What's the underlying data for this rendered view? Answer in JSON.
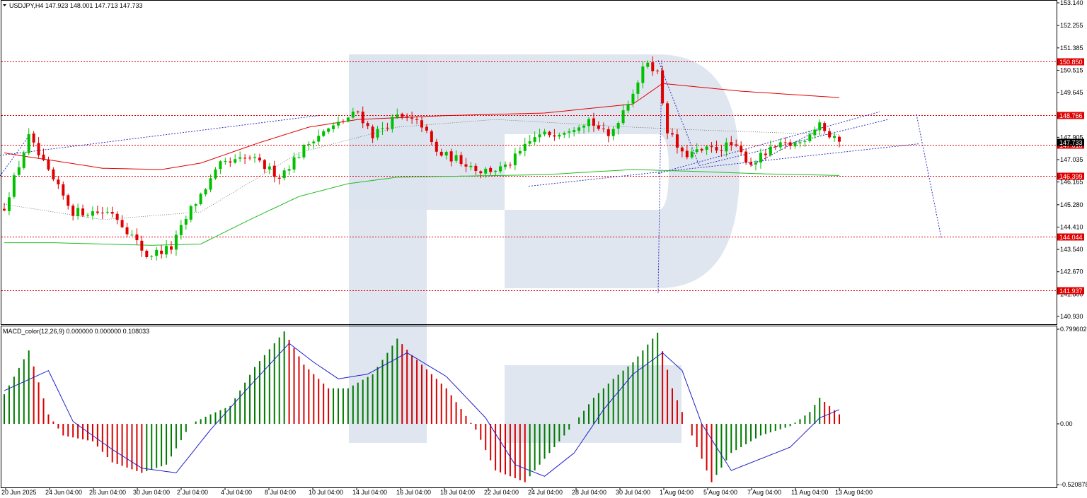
{
  "header": {
    "price_label": "USDJPY,H4  147.923 148.001 147.713 147.733",
    "macd_label": "MACD_color(12,26,9) 0.000000 0.000000 0.108033"
  },
  "chart_data": {
    "type": "candlestick",
    "symbol": "USDJPY",
    "timeframe": "H4",
    "ohlc_last": {
      "open": 147.923,
      "high": 148.001,
      "low": 147.713,
      "close": 147.733
    },
    "price_axis": {
      "ylim": [
        140.5,
        153.2
      ],
      "ticks": [
        "153.140",
        "152.255",
        "151.385",
        "150.515",
        "149.645",
        "148.775",
        "147.905",
        "147.035",
        "146.165",
        "145.280",
        "144.410",
        "143.540",
        "142.670",
        "141.800",
        "140.930"
      ]
    },
    "x_ticks": [
      "20 Jun 2025",
      "24 Jun 04:00",
      "26 Jun 04:00",
      "30 Jun 04:00",
      "2 Jul 04:00",
      "4 Jul 04:00",
      "8 Jul 04:00",
      "10 Jul 04:00",
      "14 Jul 04:00",
      "16 Jul 04:00",
      "18 Jul 04:00",
      "22 Jul 04:00",
      "24 Jul 04:00",
      "28 Jul 04:00",
      "30 Jul 04:00",
      "1 Aug 04:00",
      "5 Aug 04:00",
      "7 Aug 04:00",
      "11 Aug 04:00",
      "13 Aug 04:00"
    ],
    "levels": [
      {
        "value": 150.85,
        "label": "150.850"
      },
      {
        "value": 148.766,
        "label": "148.766"
      },
      {
        "value": 147.618,
        "label": "147.618"
      },
      {
        "value": 146.399,
        "label": "146.399"
      },
      {
        "value": 144.044,
        "label": "144.044"
      },
      {
        "value": 141.937,
        "label": "141.937"
      }
    ],
    "current_price": {
      "value": 147.733,
      "label": "147.733"
    },
    "close_anchors": [
      [
        0,
        145.2
      ],
      [
        5,
        147.9
      ],
      [
        9,
        146.5
      ],
      [
        14,
        145.0
      ],
      [
        22,
        145.0
      ],
      [
        25,
        144.3
      ],
      [
        29,
        143.3
      ],
      [
        34,
        143.6
      ],
      [
        38,
        145.1
      ],
      [
        44,
        146.8
      ],
      [
        50,
        147.1
      ],
      [
        56,
        146.4
      ],
      [
        63,
        147.9
      ],
      [
        67,
        148.3
      ],
      [
        72,
        148.9
      ],
      [
        75,
        148.0
      ],
      [
        80,
        148.7
      ],
      [
        85,
        148.4
      ],
      [
        88,
        147.3
      ],
      [
        93,
        147.0
      ],
      [
        97,
        146.6
      ],
      [
        102,
        146.7
      ],
      [
        108,
        147.9
      ],
      [
        114,
        148.2
      ],
      [
        119,
        148.6
      ],
      [
        123,
        147.9
      ],
      [
        128,
        149.7
      ],
      [
        131,
        150.9
      ],
      [
        133,
        150.4
      ],
      [
        135,
        148.2
      ],
      [
        138,
        147.2
      ],
      [
        143,
        147.4
      ],
      [
        148,
        147.6
      ],
      [
        152,
        146.9
      ],
      [
        157,
        147.5
      ],
      [
        162,
        147.7
      ],
      [
        166,
        148.5
      ],
      [
        168,
        147.9
      ],
      [
        170,
        147.7
      ]
    ],
    "sma_red": [
      [
        0,
        147.3
      ],
      [
        3,
        147.2
      ],
      [
        10,
        147.0
      ],
      [
        20,
        146.7
      ],
      [
        32,
        146.65
      ],
      [
        40,
        146.9
      ],
      [
        52,
        147.7
      ],
      [
        62,
        148.3
      ],
      [
        72,
        148.6
      ],
      [
        90,
        148.75
      ],
      [
        110,
        148.85
      ],
      [
        128,
        149.2
      ],
      [
        134,
        150.0
      ],
      [
        150,
        149.7
      ],
      [
        170,
        149.45
      ]
    ],
    "sma_green": [
      [
        0,
        143.8
      ],
      [
        10,
        143.8
      ],
      [
        20,
        143.75
      ],
      [
        30,
        143.7
      ],
      [
        40,
        143.75
      ],
      [
        50,
        144.7
      ],
      [
        60,
        145.6
      ],
      [
        70,
        146.1
      ],
      [
        80,
        146.35
      ],
      [
        95,
        146.4
      ],
      [
        110,
        146.45
      ],
      [
        128,
        146.65
      ],
      [
        140,
        146.58
      ],
      [
        155,
        146.48
      ],
      [
        170,
        146.42
      ]
    ],
    "macd_axis": {
      "ylim": [
        -0.5208,
        0.7996
      ],
      "ticks": [
        "0.799602",
        "0.00",
        "-0.520878"
      ]
    },
    "macd_hist_anchors": [
      [
        0,
        0.25
      ],
      [
        5,
        0.62
      ],
      [
        9,
        0.08
      ],
      [
        12,
        -0.1
      ],
      [
        18,
        -0.15
      ],
      [
        22,
        -0.33
      ],
      [
        28,
        -0.42
      ],
      [
        33,
        -0.35
      ],
      [
        38,
        0.0
      ],
      [
        42,
        0.08
      ],
      [
        46,
        0.15
      ],
      [
        51,
        0.48
      ],
      [
        57,
        0.78
      ],
      [
        61,
        0.5
      ],
      [
        66,
        0.3
      ],
      [
        70,
        0.3
      ],
      [
        75,
        0.42
      ],
      [
        80,
        0.72
      ],
      [
        83,
        0.58
      ],
      [
        90,
        0.3
      ],
      [
        96,
        -0.05
      ],
      [
        100,
        -0.4
      ],
      [
        106,
        -0.5
      ],
      [
        110,
        -0.3
      ],
      [
        116,
        0.0
      ],
      [
        120,
        0.22
      ],
      [
        124,
        0.38
      ],
      [
        128,
        0.52
      ],
      [
        133,
        0.77
      ],
      [
        136,
        0.3
      ],
      [
        140,
        -0.1
      ],
      [
        144,
        -0.5
      ],
      [
        148,
        -0.25
      ],
      [
        154,
        -0.1
      ],
      [
        160,
        -0.02
      ],
      [
        164,
        0.1
      ],
      [
        166,
        0.22
      ],
      [
        170,
        0.08
      ]
    ],
    "macd_signal_anchors": [
      [
        0,
        0.28
      ],
      [
        9,
        0.45
      ],
      [
        14,
        0.02
      ],
      [
        22,
        -0.22
      ],
      [
        28,
        -0.38
      ],
      [
        35,
        -0.42
      ],
      [
        42,
        -0.05
      ],
      [
        50,
        0.32
      ],
      [
        58,
        0.68
      ],
      [
        63,
        0.52
      ],
      [
        68,
        0.38
      ],
      [
        74,
        0.42
      ],
      [
        82,
        0.6
      ],
      [
        90,
        0.4
      ],
      [
        98,
        0.05
      ],
      [
        104,
        -0.35
      ],
      [
        110,
        -0.45
      ],
      [
        116,
        -0.25
      ],
      [
        122,
        0.12
      ],
      [
        128,
        0.42
      ],
      [
        134,
        0.6
      ],
      [
        138,
        0.45
      ],
      [
        142,
        0.0
      ],
      [
        148,
        -0.4
      ],
      [
        154,
        -0.3
      ],
      [
        160,
        -0.2
      ],
      [
        166,
        0.05
      ],
      [
        170,
        0.12
      ]
    ]
  },
  "colors": {
    "bull": "#00c000",
    "bear": "#e00000",
    "level": "#e00000",
    "sma_red": "#e00000",
    "sma_green": "#22bb22",
    "trend": "#3030c0",
    "signal": "#2020c8",
    "macd_up": "#007a00",
    "macd_down": "#d80000",
    "watermark": "#dbe3ee"
  }
}
